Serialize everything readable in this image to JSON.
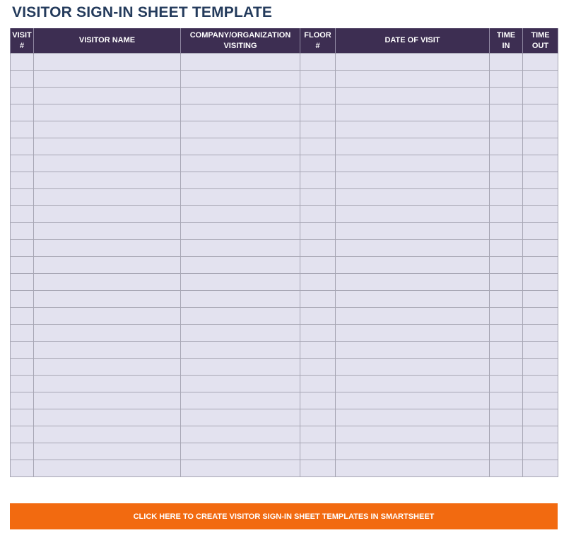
{
  "title": "VISITOR SIGN-IN SHEET TEMPLATE",
  "columns": [
    {
      "line1": "VISIT",
      "line2": "#"
    },
    {
      "line1": "VISITOR NAME",
      "line2": ""
    },
    {
      "line1": "COMPANY/ORGANIZATION",
      "line2": "VISITING"
    },
    {
      "line1": "FLOOR",
      "line2": "#"
    },
    {
      "line1": "DATE OF VISIT",
      "line2": ""
    },
    {
      "line1": "TIME",
      "line2": "IN"
    },
    {
      "line1": "TIME",
      "line2": "OUT"
    }
  ],
  "row_count": 25,
  "cta_label": "CLICK HERE TO CREATE VISITOR SIGN-IN SHEET TEMPLATES IN SMARTSHEET",
  "colors": {
    "header": "#3d2e52",
    "row": "#e3e2ef",
    "title": "#243b5c",
    "cta": "#f26a10"
  }
}
